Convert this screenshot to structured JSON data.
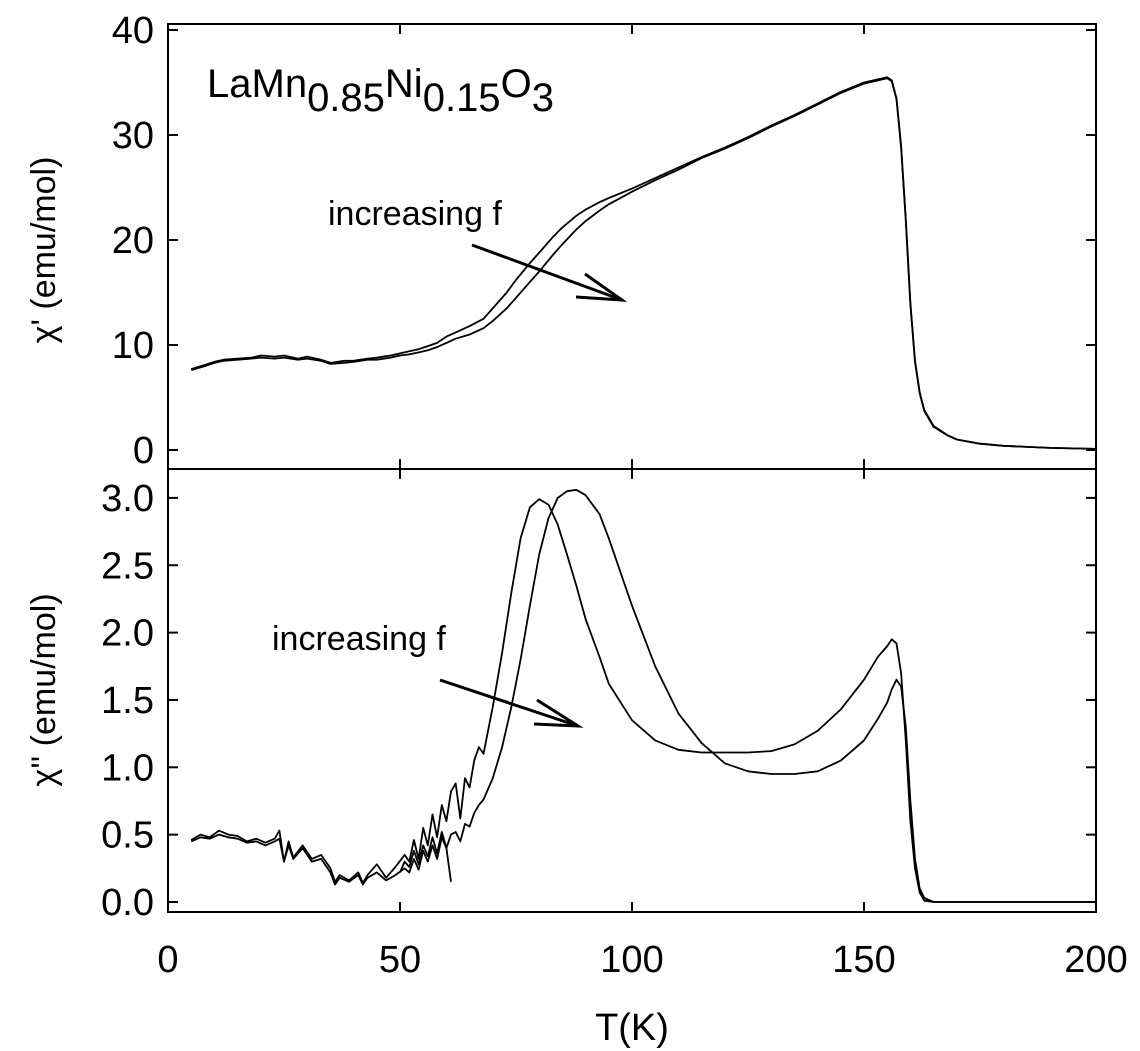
{
  "chart_data": [
    {
      "type": "line",
      "panel": "top",
      "ylabel": "χ' (emu/mol)",
      "xlim": [
        0,
        200
      ],
      "ylim": [
        0,
        40
      ],
      "yticks": [
        "0",
        "10",
        "20",
        "30",
        "40"
      ],
      "annotation_compound": {
        "base": "LaMn",
        "sub1": "0.85",
        "mid": "Ni",
        "sub2": "0.15",
        "mid2": "O",
        "sub3": "3"
      },
      "annotation_arrow_text": "increasing f",
      "grid": false,
      "series": [
        {
          "x": [
            5,
            8,
            10,
            12,
            15,
            18,
            20,
            23,
            25,
            28,
            30,
            33,
            35,
            38,
            40,
            43,
            45,
            48,
            50,
            52,
            54,
            56,
            58,
            60,
            62,
            65,
            68,
            70,
            73,
            75,
            78,
            80,
            83,
            85,
            88,
            90,
            93,
            95,
            100,
            105,
            110,
            115,
            120,
            125,
            130,
            135,
            140,
            145,
            150,
            153,
            155,
            156,
            157,
            158,
            159,
            160,
            161,
            162,
            163,
            165,
            168,
            170,
            175,
            180,
            190,
            200
          ],
          "values": [
            7.7,
            8.1,
            8.4,
            8.6,
            8.7,
            8.8,
            9.0,
            8.9,
            9.0,
            8.7,
            8.9,
            8.6,
            8.3,
            8.5,
            8.5,
            8.7,
            8.8,
            9.0,
            9.2,
            9.4,
            9.6,
            9.9,
            10.2,
            10.8,
            11.2,
            11.8,
            12.5,
            13.5,
            15.0,
            16.2,
            17.8,
            18.8,
            20.3,
            21.2,
            22.3,
            22.9,
            23.6,
            24.0,
            24.9,
            25.9,
            26.9,
            27.9,
            28.8,
            29.8,
            30.9,
            31.9,
            33.0,
            34.1,
            35.0,
            35.3,
            35.5,
            35.2,
            33.5,
            29.0,
            22.0,
            14.0,
            8.5,
            5.5,
            3.8,
            2.3,
            1.4,
            1.0,
            0.6,
            0.4,
            0.2,
            0.1
          ]
        },
        {
          "x": [
            5,
            8,
            10,
            12,
            15,
            18,
            20,
            23,
            25,
            28,
            30,
            33,
            35,
            38,
            40,
            43,
            45,
            48,
            50,
            52,
            54,
            56,
            58,
            60,
            62,
            65,
            68,
            70,
            73,
            75,
            78,
            80,
            83,
            85,
            88,
            90,
            93,
            95,
            100,
            105,
            110,
            115,
            120,
            125,
            130,
            135,
            140,
            145,
            150,
            153,
            155,
            156,
            157,
            158,
            159,
            160,
            161,
            162,
            163,
            165,
            168,
            170,
            175,
            180,
            190,
            200
          ],
          "values": [
            7.6,
            8.0,
            8.3,
            8.5,
            8.6,
            8.7,
            8.8,
            8.7,
            8.8,
            8.6,
            8.7,
            8.5,
            8.2,
            8.3,
            8.4,
            8.6,
            8.6,
            8.8,
            9.0,
            9.1,
            9.3,
            9.5,
            9.8,
            10.2,
            10.6,
            11.0,
            11.6,
            12.3,
            13.5,
            14.5,
            16.0,
            17.0,
            18.6,
            19.6,
            21.0,
            21.8,
            22.8,
            23.4,
            24.6,
            25.7,
            26.7,
            27.8,
            28.7,
            29.7,
            30.8,
            31.8,
            32.9,
            34.0,
            34.9,
            35.2,
            35.4,
            35.1,
            33.4,
            28.8,
            21.8,
            13.8,
            8.4,
            5.4,
            3.7,
            2.2,
            1.4,
            1.0,
            0.6,
            0.4,
            0.2,
            0.1
          ]
        }
      ]
    },
    {
      "type": "line",
      "panel": "bottom",
      "xlabel": "T(K)",
      "ylabel": "χ'' (emu/mol)",
      "xlim": [
        0,
        200
      ],
      "ylim": [
        -0.1,
        3.1
      ],
      "xticks": [
        "0",
        "50",
        "100",
        "150",
        "200"
      ],
      "yticks": [
        "0.0",
        "0.5",
        "1.0",
        "1.5",
        "2.0",
        "2.5",
        "3.0"
      ],
      "annotation_arrow_text": "increasing f",
      "grid": false,
      "series": [
        {
          "x": [
            5,
            7,
            9,
            11,
            13,
            15,
            17,
            19,
            21,
            23,
            24,
            25,
            26,
            27,
            29,
            31,
            33,
            35,
            36,
            37,
            39,
            41,
            42,
            43,
            45,
            47,
            49,
            51,
            52,
            53,
            54,
            55,
            56,
            57,
            58,
            59,
            60,
            61,
            62,
            63,
            64,
            65,
            66,
            67,
            68,
            70,
            72,
            74,
            76,
            78,
            80,
            82,
            84,
            86,
            88,
            90,
            93,
            95,
            100,
            105,
            110,
            115,
            120,
            125,
            130,
            135,
            140,
            145,
            150,
            153,
            155,
            156,
            157,
            158,
            159,
            160,
            161,
            162,
            163,
            165,
            170,
            180,
            200
          ],
          "values": [
            0.46,
            0.5,
            0.48,
            0.53,
            0.5,
            0.49,
            0.45,
            0.47,
            0.44,
            0.47,
            0.53,
            0.3,
            0.45,
            0.33,
            0.42,
            0.32,
            0.35,
            0.25,
            0.15,
            0.2,
            0.16,
            0.22,
            0.14,
            0.2,
            0.28,
            0.18,
            0.26,
            0.35,
            0.3,
            0.46,
            0.32,
            0.55,
            0.42,
            0.65,
            0.48,
            0.72,
            0.6,
            0.82,
            0.88,
            0.62,
            0.92,
            0.85,
            1.05,
            1.15,
            1.1,
            1.45,
            1.85,
            2.3,
            2.7,
            2.93,
            2.99,
            2.95,
            2.8,
            2.58,
            2.35,
            2.1,
            1.82,
            1.62,
            1.35,
            1.2,
            1.13,
            1.11,
            1.11,
            1.11,
            1.12,
            1.17,
            1.27,
            1.43,
            1.65,
            1.82,
            1.9,
            1.95,
            1.92,
            1.7,
            1.2,
            0.6,
            0.25,
            0.07,
            0.01,
            0.0,
            0.0,
            0.0,
            0.0
          ]
        },
        {
          "x": [
            5,
            7,
            9,
            11,
            13,
            15,
            17,
            19,
            21,
            23,
            24,
            25,
            26,
            27,
            29,
            31,
            33,
            35,
            36,
            37,
            39,
            41,
            42,
            43,
            45,
            47,
            49,
            51,
            52,
            53,
            54,
            55,
            56,
            57,
            58,
            59,
            60,
            61,
            62,
            63,
            64,
            65,
            66,
            67,
            68,
            70,
            72,
            74,
            76,
            78,
            80,
            82,
            84,
            86,
            88,
            90,
            93,
            95,
            100,
            105,
            110,
            115,
            120,
            125,
            130,
            135,
            140,
            145,
            150,
            153,
            155,
            156,
            157,
            158,
            159,
            160,
            161,
            162,
            163,
            165,
            170,
            180,
            200
          ],
          "values": [
            0.45,
            0.48,
            0.47,
            0.5,
            0.48,
            0.47,
            0.44,
            0.45,
            0.42,
            0.45,
            0.47,
            0.3,
            0.42,
            0.32,
            0.4,
            0.3,
            0.32,
            0.22,
            0.13,
            0.18,
            0.15,
            0.2,
            0.13,
            0.18,
            0.22,
            0.16,
            0.2,
            0.25,
            0.22,
            0.32,
            0.24,
            0.38,
            0.3,
            0.42,
            0.32,
            0.48,
            0.4,
            0.5,
            0.52,
            0.45,
            0.58,
            0.56,
            0.66,
            0.72,
            0.76,
            0.92,
            1.15,
            1.45,
            1.8,
            2.2,
            2.58,
            2.85,
            3.0,
            3.05,
            3.06,
            3.02,
            2.88,
            2.7,
            2.2,
            1.75,
            1.4,
            1.18,
            1.03,
            0.97,
            0.95,
            0.95,
            0.97,
            1.05,
            1.2,
            1.36,
            1.48,
            1.58,
            1.65,
            1.6,
            1.3,
            0.75,
            0.32,
            0.1,
            0.03,
            0.0,
            0.0,
            0.0,
            0.0
          ]
        },
        {
          "x": [
            50,
            51,
            52,
            53,
            54,
            55,
            56,
            57,
            58,
            59,
            60,
            61
          ],
          "values": [
            0.22,
            0.3,
            0.26,
            0.38,
            0.28,
            0.42,
            0.34,
            0.48,
            0.36,
            0.52,
            0.4,
            0.15
          ]
        }
      ]
    }
  ]
}
